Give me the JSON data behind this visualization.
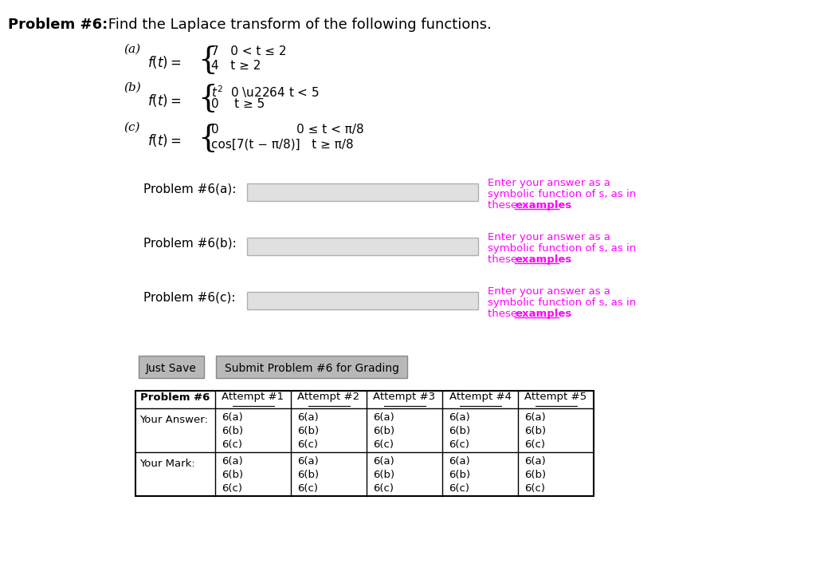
{
  "title_bold": "Problem #6:",
  "title_normal": " Find the Laplace transform of the following functions.",
  "bg_color": "#ffffff",
  "part_a_label": "(a)",
  "part_a_line1": "7   0 < t ≤ 2",
  "part_a_line2": "4   t ≥ 2",
  "part_b_label": "(b)",
  "part_b_line1": "t²  0 ≤ t < 5",
  "part_b_line2": "0    t ≥ 5",
  "part_c_label": "(c)",
  "part_c_line1": "0                    0 ≤ t < π/8",
  "part_c_line2": "cos[7(t − π/8)]   t ≥ π/8",
  "problem_labels": [
    "Problem #6(a):",
    "Problem #6(b):",
    "Problem #6(c):"
  ],
  "hint_line1": "Enter your answer as a",
  "hint_line2": "symbolic function of s, as in",
  "hint_line3_normal": "these ",
  "hint_line3_bold": "examples",
  "magenta_color": "#ff00ff",
  "button1": "Just Save",
  "button2": "Submit Problem #6 for Grading",
  "table_header": [
    "Problem #6",
    "Attempt #1",
    "Attempt #2",
    "Attempt #3",
    "Attempt #4",
    "Attempt #5"
  ],
  "table_row1_label": "Your Answer:",
  "table_row2_label": "Your Mark:",
  "table_cell_lines": [
    "6(a)",
    "6(b)",
    "6(c)"
  ],
  "input_box_color": "#e0e0e0",
  "input_box_border": "#b0b0b0"
}
